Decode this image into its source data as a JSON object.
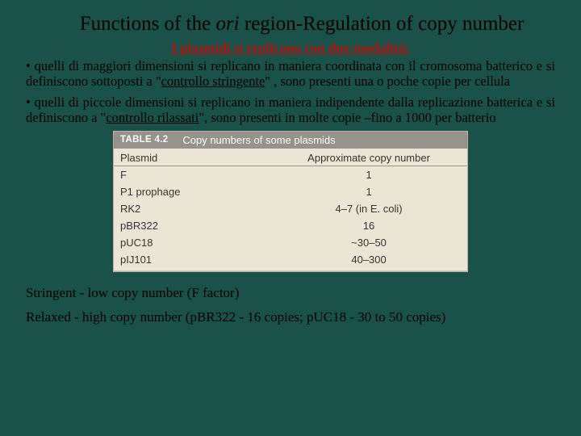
{
  "title": {
    "pre": "Functions of the ",
    "ori": "ori",
    "post": " region-Regulation of copy number"
  },
  "subtitle": "I plasmidi si replicano con due modalità:",
  "para1": {
    "bullet": "• ",
    "pre": "quelli di maggiori dimensioni si replicano in maniera coordinata con il cromosoma batterico e si definiscono sottoposti a \"",
    "u": "controllo stringente",
    "post": "\" , sono presenti una o poche copie per cellula"
  },
  "para2": {
    "bullet": "• ",
    "pre": "quelli di piccole dimensioni si replicano in maniera indipendente dalla replicazione batterica e si definiscono a \"",
    "u": "controllo rilassati",
    "post": "\", sono presenti in molte copie –fino a 1000 per batterio"
  },
  "table": {
    "tableNum": "TABLE 4.2",
    "tableTitle": "Copy numbers of some plasmids",
    "col1": "Plasmid",
    "col2": "Approximate copy number",
    "rows": [
      {
        "c1": "F",
        "c2": "1"
      },
      {
        "c1": "P1 prophage",
        "c2": "1"
      },
      {
        "c1": "RK2",
        "c2": "4–7 (in E. coli)"
      },
      {
        "c1": "pBR322",
        "c2": "16"
      },
      {
        "c1": "pUC18",
        "c2": "~30–50"
      },
      {
        "c1": "pIJ101",
        "c2": "40–300"
      }
    ]
  },
  "footer1": "Stringent - low copy number (F factor)",
  "footer2": "Relaxed - high copy number (pBR322 - 16 copies; pUC18 - 30 to 50 copies)",
  "colors": {
    "background": "#1a5249",
    "accent": "#b80f0a",
    "tableHeaderBg": "#94908a",
    "tableBg": "#e9e5d8"
  }
}
